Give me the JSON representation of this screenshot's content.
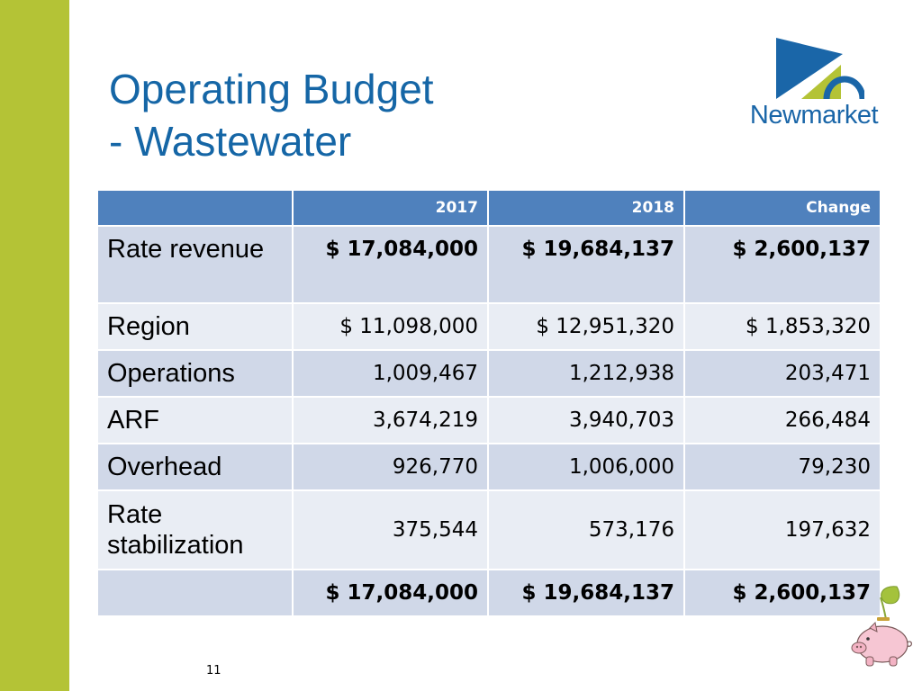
{
  "slide": {
    "title_line1": "Operating Budget",
    "title_line2": "- Wastewater",
    "page_number": "11",
    "accent_color": "#b4c336",
    "title_color": "#1566a6"
  },
  "logo": {
    "text": "Newmarket",
    "icon": "newmarket-logo-icon"
  },
  "table": {
    "header_color": "#4f81bd",
    "columns": [
      "",
      "2017",
      "2018",
      "Change"
    ],
    "rows": [
      {
        "label": "Rate revenue",
        "v2017": "$ 17,084,000",
        "v2018": "$ 19,684,137",
        "change": "$ 2,600,137"
      },
      {
        "label": "Region",
        "v2017": "$ 11,098,000",
        "v2018": "$ 12,951,320",
        "change": "$ 1,853,320"
      },
      {
        "label": "Operations",
        "v2017": "1,009,467",
        "v2018": "1,212,938",
        "change": "203,471"
      },
      {
        "label": "ARF",
        "v2017": "3,674,219",
        "v2018": "3,940,703",
        "change": "266,484"
      },
      {
        "label": "Overhead",
        "v2017": "926,770",
        "v2018": "1,006,000",
        "change": "79,230"
      },
      {
        "label": "Rate stabilization",
        "v2017": "375,544",
        "v2018": "573,176",
        "change": "197,632"
      },
      {
        "label": "",
        "v2017": "$ 17,084,000",
        "v2018": "$ 19,684,137",
        "change": "$ 2,600,137"
      }
    ]
  },
  "decoration": {
    "icon": "piggy-bank-icon"
  }
}
